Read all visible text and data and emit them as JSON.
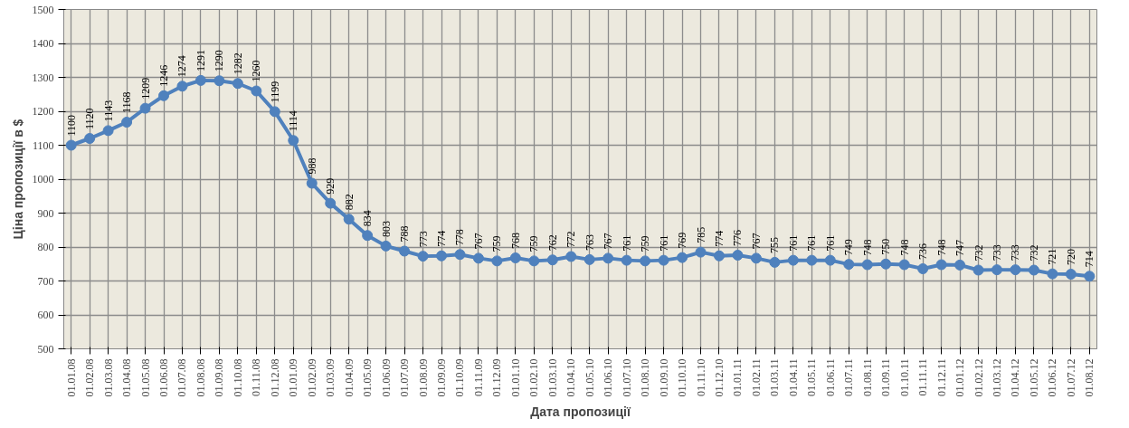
{
  "chart_data": {
    "type": "line",
    "xlabel": "Дата пропозиції",
    "ylabel": "Ціна пропозиції в $",
    "categories": [
      "01.01.08",
      "01.02.08",
      "01.03.08",
      "01.04.08",
      "01.05.08",
      "01.06.08",
      "01.07.08",
      "01.08.08",
      "01.09.08",
      "01.10.08",
      "01.11.08",
      "01.12.08",
      "01.01.09",
      "01.02.09",
      "01.03.09",
      "01.04.09",
      "01.05.09",
      "01.06.09",
      "01.07.09",
      "01.08.09",
      "01.09.09",
      "01.10.09",
      "01.11.09",
      "01.12.09",
      "01.01.10",
      "01.02.10",
      "01.03.10",
      "01.04.10",
      "01.05.10",
      "01.06.10",
      "01.07.10",
      "01.08.10",
      "01.09.10",
      "01.10.10",
      "01.11.10",
      "01.12.10",
      "01.01.11",
      "01.02.11",
      "01.03.11",
      "01.04.11",
      "01.05.11",
      "01.06.11",
      "01.07.11",
      "01.08.11",
      "01.09.11",
      "01.10.11",
      "01.11.11",
      "01.12.11",
      "01.01.12",
      "01.02.12",
      "01.03.12",
      "01.04.12",
      "01.05.12",
      "01.06.12",
      "01.07.12",
      "01.08.12"
    ],
    "series": [
      {
        "color": "#4f81bd",
        "values": [
          1100,
          1120,
          1143,
          1168,
          1209,
          1246,
          1274,
          1291,
          1290,
          1282,
          1260,
          1199,
          1114,
          988,
          929,
          882,
          834,
          803,
          788,
          773,
          774,
          778,
          767,
          759,
          768,
          759,
          762,
          772,
          763,
          767,
          761,
          759,
          761,
          769,
          785,
          774,
          776,
          767,
          755,
          761,
          761,
          761,
          749,
          748,
          750,
          748,
          736,
          748,
          747,
          732,
          733,
          733,
          732,
          721,
          720,
          714
        ]
      }
    ],
    "ylim": [
      500,
      1500
    ],
    "yticks": [
      500,
      600,
      700,
      800,
      900,
      1000,
      1100,
      1200,
      1300,
      1400,
      1500
    ],
    "grid": true,
    "marker": "circle",
    "line_style": "solid",
    "data_labels": true
  }
}
